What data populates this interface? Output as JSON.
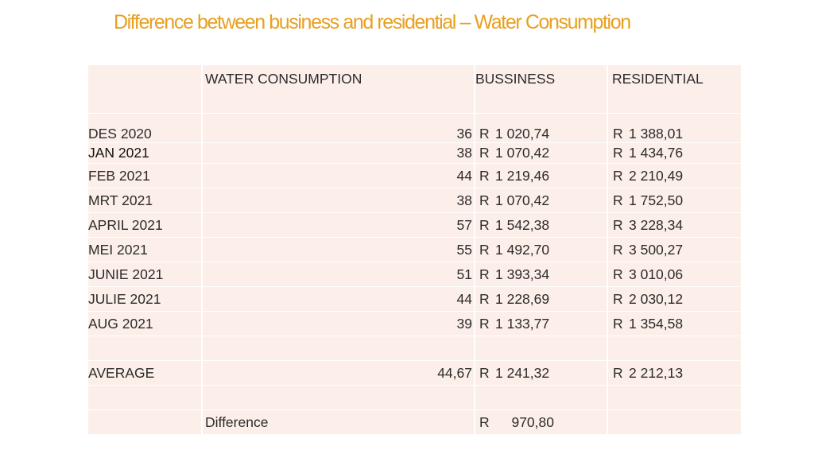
{
  "title": "Difference between business and residential – Water Consumption",
  "table": {
    "headers": [
      "",
      "WATER CONSUMPTION",
      "BUSSINESS",
      "RESIDENTIAL"
    ],
    "rows": [
      {
        "month": "DES 2020",
        "consumption": "36",
        "business": "1 020,74",
        "residential": "1 388,01"
      },
      {
        "month": "JAN 2021",
        "consumption": "38",
        "business": "1 070,42",
        "residential": "1 434,76"
      },
      {
        "month": "FEB 2021",
        "consumption": "44",
        "business": "1 219,46",
        "residential": "2 210,49"
      },
      {
        "month": "MRT 2021",
        "consumption": "38",
        "business": "1 070,42",
        "residential": "1 752,50"
      },
      {
        "month": "APRIL 2021",
        "consumption": "57",
        "business": "1 542,38",
        "residential": "3 228,34"
      },
      {
        "month": "MEI 2021",
        "consumption": "55",
        "business": "1 492,70",
        "residential": "3 500,27"
      },
      {
        "month": "JUNIE 2021",
        "consumption": "51",
        "business": "1 393,34",
        "residential": "3 010,06"
      },
      {
        "month": "JULIE 2021",
        "consumption": "44",
        "business": "1 228,69",
        "residential": "2 030,12"
      },
      {
        "month": "AUG 2021",
        "consumption": "39",
        "business": "1 133,77",
        "residential": "1 354,58"
      }
    ],
    "currency": "R",
    "average": {
      "label": "AVERAGE",
      "consumption": "44,67",
      "business": "1 241,32",
      "residential": "2 212,13"
    },
    "difference": {
      "label": "Difference",
      "value": "970,80"
    }
  }
}
